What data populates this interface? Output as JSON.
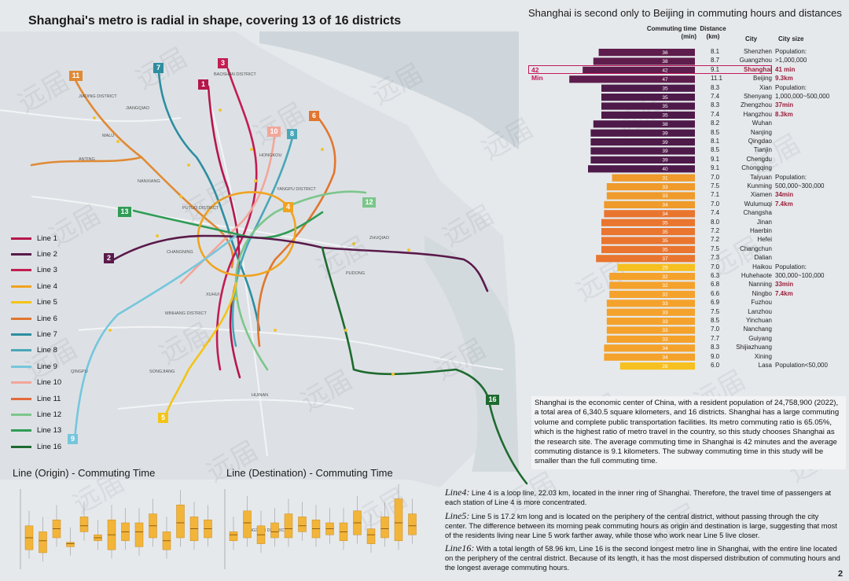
{
  "map": {
    "title": "Shanghai's metro is radial in shape, covering 13 of 16 districts",
    "legend": [
      {
        "label": "Line 1",
        "color": "#b5174b"
      },
      {
        "label": "Line 2",
        "color": "#5a1a4a"
      },
      {
        "label": "Line 3",
        "color": "#c21d52"
      },
      {
        "label": "Line 4",
        "color": "#f0a321"
      },
      {
        "label": "Line 5",
        "color": "#f3c318"
      },
      {
        "label": "Line 6",
        "color": "#e2762f"
      },
      {
        "label": "Line 7",
        "color": "#2d8ea0"
      },
      {
        "label": "Line 8",
        "color": "#4aa6b8"
      },
      {
        "label": "Line 9",
        "color": "#76c6dc"
      },
      {
        "label": "Line 10",
        "color": "#f2a69a"
      },
      {
        "label": "Line 11",
        "color": "#e46a3d"
      },
      {
        "label": "Line 12",
        "color": "#7cc68b"
      },
      {
        "label": "Line 13",
        "color": "#2f9c55"
      },
      {
        "label": "Line 16",
        "color": "#1e6a2f"
      }
    ],
    "badges": [
      {
        "text": "11",
        "color": "#e08a35"
      },
      {
        "text": "7",
        "color": "#2d8ea0"
      },
      {
        "text": "3",
        "color": "#c21d52"
      },
      {
        "text": "1",
        "color": "#b5174b"
      },
      {
        "text": "6",
        "color": "#e2762f"
      },
      {
        "text": "10",
        "color": "#f2a69a"
      },
      {
        "text": "8",
        "color": "#4aa6b8"
      },
      {
        "text": "13",
        "color": "#2f9c55"
      },
      {
        "text": "4",
        "color": "#f0a321"
      },
      {
        "text": "12",
        "color": "#7cc68b"
      },
      {
        "text": "2",
        "color": "#5a1a4a"
      },
      {
        "text": "5",
        "color": "#f3c318"
      },
      {
        "text": "16",
        "color": "#1e6a2f"
      },
      {
        "text": "9",
        "color": "#76c6dc"
      }
    ],
    "place_labels": [
      "JIADING DISTRICT",
      "BAOSHAN DISTRICT",
      "PUTUO DISTRICT",
      "MINHANG DISTRICT",
      "QINGPU",
      "YANGPU DISTRICT",
      "HONGKOU",
      "CHANGNING",
      "XUHUI",
      "PUDONG",
      "SONGJIANG",
      "FENGXIAN DISTRICT",
      "NANXIANG",
      "ANTING",
      "MALU",
      "JIANGQIAO",
      "ZHUQIAO",
      "HUINAN"
    ]
  },
  "chart_data": {
    "type": "bar",
    "title": "Shanghai is second only to Beijing in commuting hours and distances",
    "headers": {
      "time": "Commuting time (min)",
      "distance": "Distance (km)",
      "city": "City",
      "size": "City size"
    },
    "callout": "42 Min",
    "highlight_city": "Shanghai",
    "groups": [
      {
        "color": "#5e1d4c",
        "cities": [
          "Shenzhen",
          "Guangzhou",
          "Shanghai",
          "Beijing"
        ],
        "times": [
          36,
          38,
          42,
          47
        ],
        "distances": [
          8.1,
          8.7,
          9.1,
          11.1
        ],
        "size_lines": [
          "Population:",
          ">1,000,000",
          "41 min",
          "9.3km"
        ]
      },
      {
        "color": "#4e1a49",
        "cities": [
          "Xian",
          "Shenyang",
          "Zhengzhou",
          "Hangzhou",
          "Wuhan",
          "Nanjing",
          "Qingdao",
          "Tianjin",
          "Chengdu",
          "Chongqing"
        ],
        "times": [
          35,
          35,
          35,
          35,
          38,
          39,
          39,
          39,
          39,
          40
        ],
        "distances": [
          8.3,
          7.4,
          8.3,
          7.4,
          8.2,
          8.5,
          8.1,
          8.5,
          9.1,
          9.1
        ],
        "size_lines": [
          "Population:",
          "1,000,000~500,000",
          "37min",
          "8.3km"
        ]
      },
      {
        "color": "#e9752e",
        "alt_color": "#ef9a2a",
        "cities": [
          "Taiyuan",
          "Kunming",
          "Xiamen",
          "Wulumuqi",
          "Changsha",
          "Jinan",
          "Haerbin",
          "Hefei",
          "Changchun",
          "Dalian"
        ],
        "times": [
          31,
          33,
          33,
          34,
          34,
          35,
          35,
          35,
          35,
          37
        ],
        "distances": [
          7.0,
          7.5,
          7.1,
          7.0,
          7.4,
          8.0,
          7.2,
          7.2,
          7.5,
          7.3
        ],
        "size_lines": [
          "Population:",
          "500,000~300,000",
          "34min",
          "7.4km"
        ]
      },
      {
        "color": "#f4a22b",
        "cities": [
          "Haikou",
          "Huhehaote",
          "Nanning",
          "Ningbo",
          "Fuzhou",
          "Lanzhou",
          "Yinchuan",
          "Nanchang",
          "Guiyang",
          "Shijiazhuang",
          "Xining",
          "Lasa"
        ],
        "times": [
          29,
          32,
          32,
          32,
          33,
          33,
          33,
          33,
          33,
          34,
          34,
          28
        ],
        "distances": [
          7.0,
          6.3,
          6.8,
          6.6,
          6.9,
          7.5,
          8.5,
          7.0,
          7.7,
          8.3,
          9.0,
          6.0
        ],
        "size_lines": [
          "Population:",
          "300,000~100,000",
          "33min",
          "7.4km",
          "Population<50,000"
        ]
      }
    ],
    "boxplots": [
      {
        "title": "Line (Origin) - Commuting Time",
        "boxes": [
          [
            22,
            30,
            38
          ],
          [
            20,
            28,
            34
          ],
          [
            30,
            36,
            42
          ],
          [
            24,
            26,
            27
          ],
          [
            34,
            38,
            44
          ],
          [
            28,
            30,
            32
          ],
          [
            22,
            32,
            42
          ],
          [
            28,
            34,
            40
          ],
          [
            24,
            34,
            40
          ],
          [
            30,
            38,
            46
          ],
          [
            22,
            28,
            34
          ],
          [
            30,
            40,
            52
          ],
          [
            28,
            36,
            44
          ],
          [
            30,
            36,
            42
          ]
        ]
      },
      {
        "title": "Line (Destination) - Commuting Time",
        "boxes": [
          [
            28,
            32,
            34
          ],
          [
            30,
            40,
            48
          ],
          [
            26,
            32,
            38
          ],
          [
            30,
            34,
            40
          ],
          [
            30,
            36,
            46
          ],
          [
            34,
            38,
            44
          ],
          [
            30,
            36,
            42
          ],
          [
            32,
            36,
            40
          ],
          [
            28,
            34,
            40
          ],
          [
            32,
            40,
            48
          ],
          [
            26,
            32,
            36
          ],
          [
            30,
            36,
            44
          ],
          [
            28,
            40,
            56
          ],
          [
            32,
            38,
            46
          ]
        ]
      }
    ]
  },
  "description": "Shanghai is the economic center of China, with a resident population of 24,758,900 (2022), a total area of 6,340.5 square kilometers, and 16 districts. Shanghai has a large commuting volume and complete public transportation facilities. Its metro commuting ratio is 65.05%, which is the highest ratio of metro travel in the country, so this study chooses Shanghai as the research site. The average commuting time in Shanghai is 42 minutes and the average commuting distance is 9.1 kilometers. The subway commuting time in this study will be smaller than the full commuting time.",
  "line_notes": [
    {
      "label": "Line4:",
      "text": " Line 4 is a loop line, 22.03 km, located in the inner ring of Shanghai. Therefore, the travel time of passengers at each station of Line 4 is more concentrated."
    },
    {
      "label": "Line5:",
      "text": " Line 5 is 17.2 km long and is located on the periphery of the central district, without passing through the city center. The difference between its morning peak commuting hours as origin and destination is large, suggesting that most of the residents living near Line 5 work farther away, while those who work near Line 5 live closer."
    },
    {
      "label": "Line16:",
      "text": " With a total length of 58.96 km, Line 16 is the second longest metro line in Shanghai, with the entire line located on the periphery of the central district. Because of its length, it has the most dispersed distribution of commuting hours and the longest average commuting hours."
    }
  ],
  "watermark": "远届",
  "page_number": "2"
}
